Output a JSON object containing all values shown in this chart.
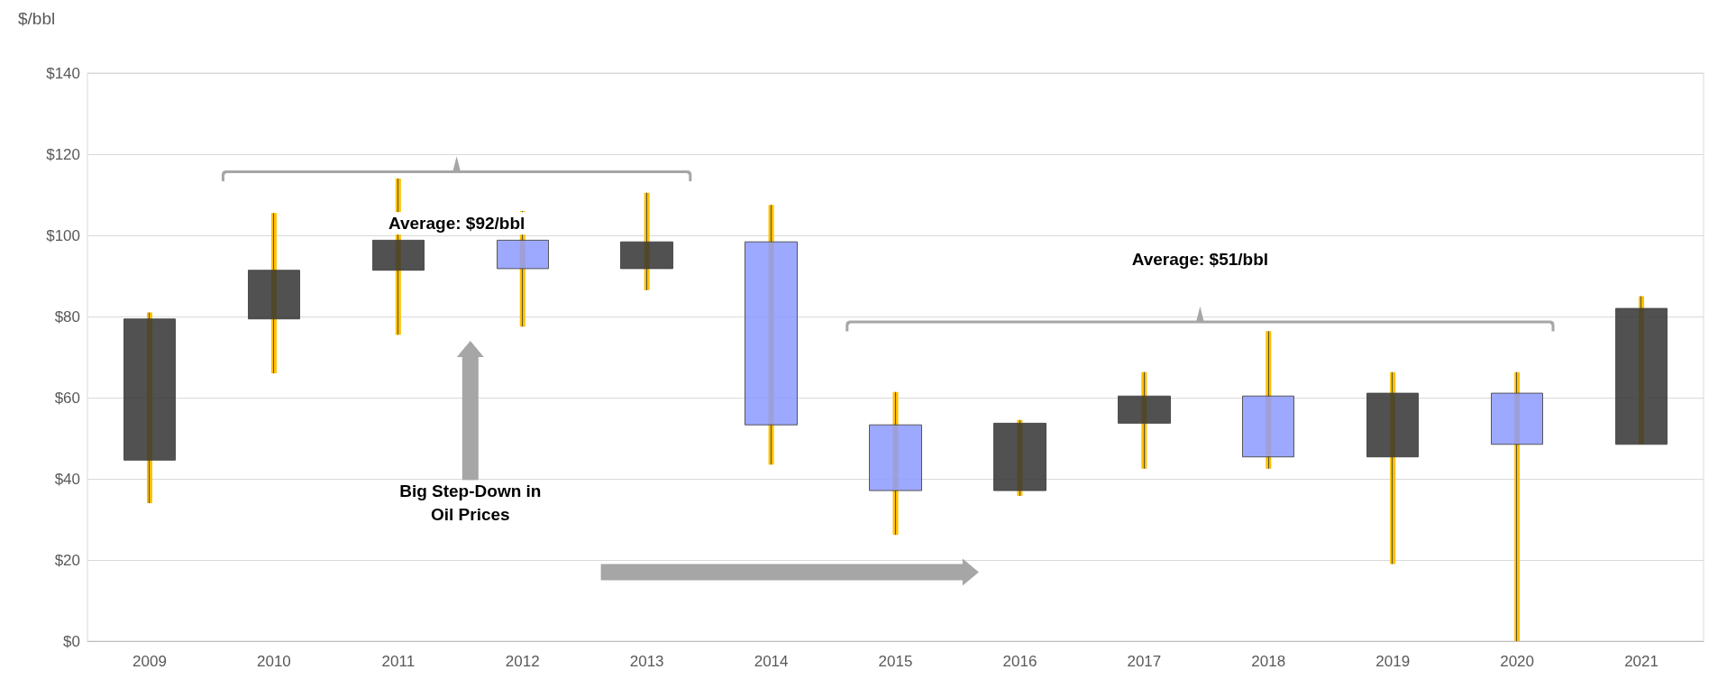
{
  "chart_data": {
    "type": "candlestick",
    "ylabel": "$/bbl",
    "categories": [
      "2009",
      "2010",
      "2011",
      "2012",
      "2013",
      "2014",
      "2015",
      "2016",
      "2017",
      "2018",
      "2019",
      "2020",
      "2021"
    ],
    "ohlc": [
      [
        44.6,
        81,
        34,
        79.4
      ],
      [
        79.4,
        105.5,
        66,
        91.4
      ],
      [
        91.4,
        114,
        75.5,
        98.8
      ],
      [
        98.8,
        106,
        77.5,
        91.8
      ],
      [
        91.8,
        110.5,
        86.5,
        98.4
      ],
      [
        98.4,
        107.5,
        43.5,
        53.3
      ],
      [
        53.3,
        61.4,
        26.2,
        37.1
      ],
      [
        37.1,
        54.5,
        35.8,
        53.7
      ],
      [
        53.7,
        66.3,
        42.5,
        60.4
      ],
      [
        60.4,
        76.4,
        42.5,
        45.4
      ],
      [
        45.4,
        66.3,
        19,
        61.1
      ],
      [
        61.1,
        66.3,
        0,
        48.5
      ],
      [
        48.5,
        85,
        48.5,
        82
      ]
    ],
    "colors": [
      "#333333",
      "#333333",
      "#333333",
      "#8c99ff",
      "#333333",
      "#8c99ff",
      "#8c99ff",
      "#333333",
      "#333333",
      "#8c99ff",
      "#333333",
      "#8c99ff",
      "#333333"
    ],
    "ylim": [
      0,
      140
    ],
    "yticks": [
      {
        "value": 0,
        "label": "$0"
      },
      {
        "value": 20,
        "label": "$20"
      },
      {
        "value": 40,
        "label": "$40"
      },
      {
        "value": 60,
        "label": "$60"
      },
      {
        "value": 80,
        "label": "$80"
      },
      {
        "value": 100,
        "label": "$100"
      },
      {
        "value": 120,
        "label": "$120"
      },
      {
        "value": 140,
        "label": "$140"
      }
    ],
    "grid": "y",
    "annotations": [
      "Average: $92/bbl",
      "Average: $51/bbl",
      "Big Step-Down in\nOil Prices"
    ]
  }
}
